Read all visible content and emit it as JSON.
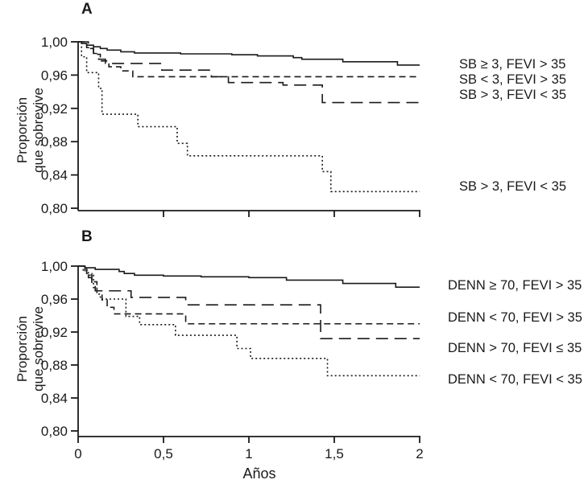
{
  "figure": {
    "background": "#ffffff",
    "line_color": "#1a1a1a",
    "x_axis_title": "Años"
  },
  "axes": {
    "y_label_line1": "Proporción",
    "y_label_line2": "que sobrevive",
    "y_ticks": [
      {
        "value": 1.0,
        "label": "1,00"
      },
      {
        "value": 0.96,
        "label": "0,96"
      },
      {
        "value": 0.92,
        "label": "0,92"
      },
      {
        "value": 0.88,
        "label": "0,88"
      },
      {
        "value": 0.84,
        "label": "0,84"
      },
      {
        "value": 0.8,
        "label": "0,80"
      }
    ],
    "x_ticks": [
      {
        "value": 0,
        "label": "0"
      },
      {
        "value": 0.5,
        "label": "0,5"
      },
      {
        "value": 1,
        "label": "1"
      },
      {
        "value": 1.5,
        "label": "1,5"
      },
      {
        "value": 2,
        "label": "2"
      }
    ]
  },
  "panels": [
    {
      "letter": "A"
    },
    {
      "letter": "B"
    }
  ],
  "chart_data": [
    {
      "panel": "A",
      "type": "line",
      "subtype": "kaplan-meier-step",
      "xlabel": "Años",
      "ylabel": "Proporción que sobrevive",
      "xlim": [
        0,
        2
      ],
      "ylim": [
        0.8,
        1.0
      ],
      "x_tick_labels_visible": false,
      "series": [
        {
          "label": "SB ≥ 3, FEVI > 35",
          "style": "solid",
          "points": [
            [
              0,
              1.0
            ],
            [
              0.02,
              0.998
            ],
            [
              0.05,
              0.996
            ],
            [
              0.09,
              0.994
            ],
            [
              0.13,
              0.992
            ],
            [
              0.17,
              0.99
            ],
            [
              0.25,
              0.988
            ],
            [
              0.33,
              0.9865
            ],
            [
              0.6,
              0.9855
            ],
            [
              0.9,
              0.9845
            ],
            [
              1.05,
              0.983
            ],
            [
              1.26,
              0.981
            ],
            [
              1.31,
              0.979
            ],
            [
              1.55,
              0.976
            ],
            [
              1.87,
              0.972
            ],
            [
              2,
              0.972
            ]
          ]
        },
        {
          "label": "SB < 3, FEVI > 35",
          "style": "dashed",
          "points": [
            [
              0,
              1.0
            ],
            [
              0.05,
              0.993
            ],
            [
              0.09,
              0.985
            ],
            [
              0.13,
              0.977
            ],
            [
              0.18,
              0.97
            ],
            [
              0.25,
              0.965
            ],
            [
              0.32,
              0.958
            ],
            [
              2,
              0.958
            ]
          ]
        },
        {
          "label": "SB > 3, FEVI < 35",
          "style": "long-dash",
          "points": [
            [
              0,
              1.0
            ],
            [
              0.06,
              0.992
            ],
            [
              0.09,
              0.986
            ],
            [
              0.12,
              0.979
            ],
            [
              0.16,
              0.974
            ],
            [
              0.49,
              0.966
            ],
            [
              0.78,
              0.958
            ],
            [
              0.88,
              0.951
            ],
            [
              1.2,
              0.948
            ],
            [
              1.43,
              0.927
            ],
            [
              2,
              0.927
            ]
          ]
        },
        {
          "label": "SB > 3, FEVI < 35",
          "style": "dotted",
          "points": [
            [
              0,
              1.0
            ],
            [
              0.02,
              0.982
            ],
            [
              0.05,
              0.963
            ],
            [
              0.12,
              0.944
            ],
            [
              0.14,
              0.913
            ],
            [
              0.35,
              0.898
            ],
            [
              0.58,
              0.878
            ],
            [
              0.64,
              0.863
            ],
            [
              1.43,
              0.844
            ],
            [
              1.48,
              0.82
            ],
            [
              2,
              0.82
            ]
          ]
        }
      ]
    },
    {
      "panel": "B",
      "type": "line",
      "subtype": "kaplan-meier-step",
      "xlabel": "Años",
      "ylabel": "Proporción que sobrevive",
      "xlim": [
        0,
        2
      ],
      "ylim": [
        0.8,
        1.0
      ],
      "x_tick_labels_visible": true,
      "series": [
        {
          "label": "DENN ≥ 70, FEVI > 35",
          "style": "solid",
          "points": [
            [
              0,
              1.0
            ],
            [
              0.04,
              0.998
            ],
            [
              0.1,
              0.996
            ],
            [
              0.24,
              0.9935
            ],
            [
              0.27,
              0.991
            ],
            [
              0.33,
              0.989
            ],
            [
              0.5,
              0.988
            ],
            [
              0.72,
              0.987
            ],
            [
              1.0,
              0.986
            ],
            [
              1.22,
              0.983
            ],
            [
              1.55,
              0.979
            ],
            [
              1.86,
              0.9745
            ],
            [
              2,
              0.9745
            ]
          ]
        },
        {
          "label": "DENN < 70, FEVI > 35",
          "style": "dashed",
          "points": [
            [
              0,
              1.0
            ],
            [
              0.05,
              0.991
            ],
            [
              0.08,
              0.981
            ],
            [
              0.11,
              0.97
            ],
            [
              0.14,
              0.959
            ],
            [
              0.17,
              0.95
            ],
            [
              0.21,
              0.942
            ],
            [
              0.63,
              0.93
            ],
            [
              2,
              0.93
            ]
          ]
        },
        {
          "label": "DENN > 70, FEVI ≤ 35",
          "style": "long-dash",
          "points": [
            [
              0,
              1.0
            ],
            [
              0.04,
              0.993
            ],
            [
              0.06,
              0.986
            ],
            [
              0.08,
              0.978
            ],
            [
              0.1,
              0.97
            ],
            [
              0.31,
              0.962
            ],
            [
              0.63,
              0.953
            ],
            [
              1.42,
              0.912
            ],
            [
              2,
              0.912
            ]
          ]
        },
        {
          "label": "DENN < 70, FEVI < 35",
          "style": "dotted",
          "points": [
            [
              0,
              1.0
            ],
            [
              0.03,
              0.995
            ],
            [
              0.06,
              0.989
            ],
            [
              0.09,
              0.974
            ],
            [
              0.11,
              0.966
            ],
            [
              0.13,
              0.96
            ],
            [
              0.28,
              0.939
            ],
            [
              0.36,
              0.929
            ],
            [
              0.57,
              0.916
            ],
            [
              0.93,
              0.9
            ],
            [
              1.01,
              0.888
            ],
            [
              1.46,
              0.867
            ],
            [
              2,
              0.867
            ]
          ]
        }
      ]
    }
  ]
}
